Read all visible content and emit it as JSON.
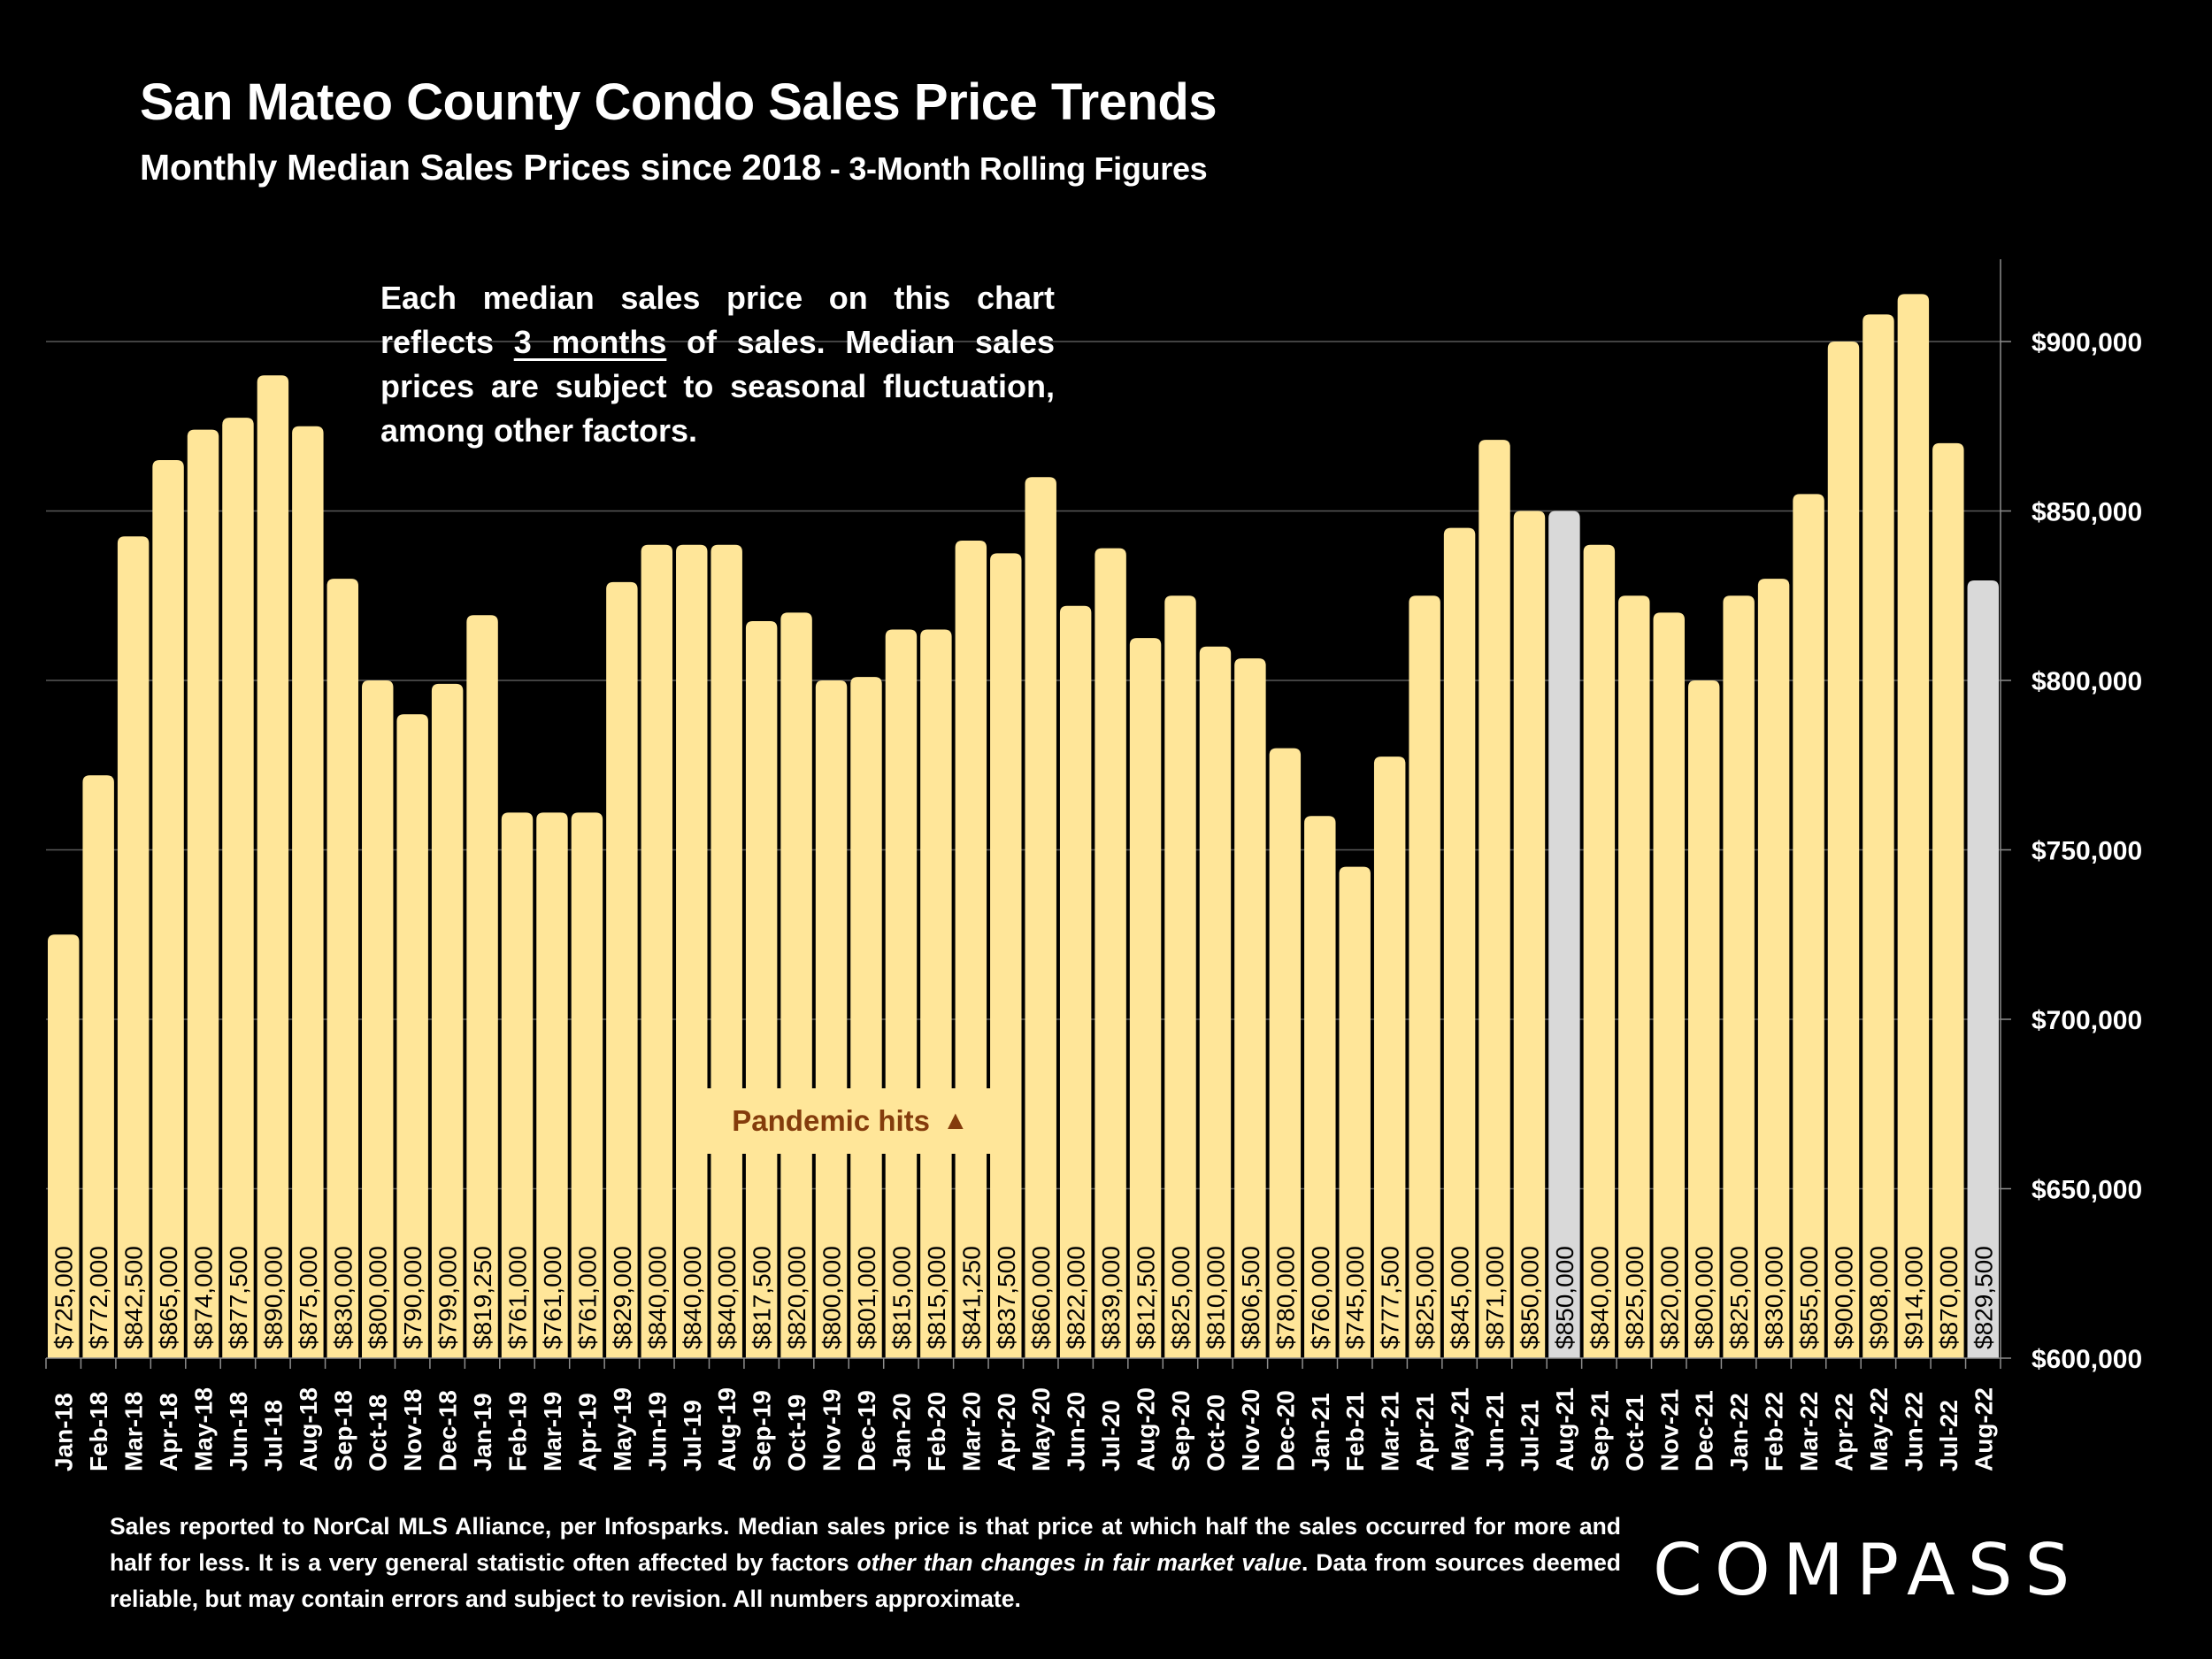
{
  "header": {
    "title": "San Mateo County Condo Sales Price Trends",
    "subtitle_main": "Monthly Median Sales Prices since 2018",
    "subtitle_suffix": " - 3-Month Rolling Figures"
  },
  "note": {
    "part1": "Each median sales price on this chart reflects ",
    "underlined": "3 months",
    "part2": " of sales. Median sales prices are subject to seasonal fluctuation, among other factors."
  },
  "annotation": {
    "label": "Pandemic hits",
    "icon": "up-triangle-icon",
    "glyph": "▲"
  },
  "footer": {
    "part1": "Sales reported to NorCal MLS Alliance, per Infosparks. Median sales price is that price at which half the sales occurred for more and half for less. It is a very general statistic often affected by factors ",
    "italic": "other than changes in fair market value",
    "part2": ". Data from sources deemed reliable, but may contain errors and subject to revision. All numbers approximate."
  },
  "logo": {
    "text": "COMPASS"
  },
  "colors": {
    "bar": "#FFE699",
    "bar_highlight": "#D9D9D9",
    "annotation_text": "#843C0C",
    "gridline": "#595959",
    "background": "#000000"
  },
  "chart_data": {
    "type": "bar",
    "title": "San Mateo County Condo Sales Price Trends",
    "subtitle": "Monthly Median Sales Prices since 2018 - 3-Month Rolling Figures",
    "xlabel": "",
    "ylabel": "",
    "ylim": [
      600000,
      925000
    ],
    "yticks": [
      600000,
      650000,
      700000,
      750000,
      800000,
      850000,
      900000
    ],
    "ytick_labels": [
      "$600,000",
      "$650,000",
      "$700,000",
      "$750,000",
      "$800,000",
      "$850,000",
      "$900,000"
    ],
    "y_axis_position": "right",
    "grid": true,
    "legend": "none",
    "categories": [
      "Jan-18",
      "Feb-18",
      "Mar-18",
      "Apr-18",
      "May-18",
      "Jun-18",
      "Jul-18",
      "Aug-18",
      "Sep-18",
      "Oct-18",
      "Nov-18",
      "Dec-18",
      "Jan-19",
      "Feb-19",
      "Mar-19",
      "Apr-19",
      "May-19",
      "Jun-19",
      "Jul-19",
      "Aug-19",
      "Sep-19",
      "Oct-19",
      "Nov-19",
      "Dec-19",
      "Jan-20",
      "Feb-20",
      "Mar-20",
      "Apr-20",
      "May-20",
      "Jun-20",
      "Jul-20",
      "Aug-20",
      "Sep-20",
      "Oct-20",
      "Nov-20",
      "Dec-20",
      "Jan-21",
      "Feb-21",
      "Mar-21",
      "Apr-21",
      "May-21",
      "Jun-21",
      "Jul-21",
      "Aug-21",
      "Sep-21",
      "Oct-21",
      "Nov-21",
      "Dec-21",
      "Jan-22",
      "Feb-22",
      "Mar-22",
      "Apr-22",
      "May-22",
      "Jun-22",
      "Jul-22",
      "Aug-22"
    ],
    "values": [
      725000,
      772000,
      842500,
      865000,
      874000,
      877500,
      890000,
      875000,
      830000,
      800000,
      790000,
      799000,
      819250,
      761000,
      761000,
      761000,
      829000,
      840000,
      840000,
      840000,
      817500,
      820000,
      800000,
      801000,
      815000,
      815000,
      841250,
      837500,
      860000,
      822000,
      839000,
      812500,
      825000,
      810000,
      806500,
      780000,
      760000,
      745000,
      777500,
      825000,
      845000,
      871000,
      850000,
      850000,
      840000,
      825000,
      820000,
      800000,
      825000,
      830000,
      855000,
      900000,
      908000,
      914000,
      870000,
      829500
    ],
    "data_labels": [
      "$725,000",
      "$772,000",
      "$842,500",
      "$865,000",
      "$874,000",
      "$877,500",
      "$890,000",
      "$875,000",
      "$830,000",
      "$800,000",
      "$790,000",
      "$799,000",
      "$819,250",
      "$761,000",
      "$761,000",
      "$761,000",
      "$829,000",
      "$840,000",
      "$840,000",
      "$840,000",
      "$817,500",
      "$820,000",
      "$800,000",
      "$801,000",
      "$815,000",
      "$815,000",
      "$841,250",
      "$837,500",
      "$860,000",
      "$822,000",
      "$839,000",
      "$812,500",
      "$825,000",
      "$810,000",
      "$806,500",
      "$780,000",
      "$760,000",
      "$745,000",
      "$777,500",
      "$825,000",
      "$845,000",
      "$871,000",
      "$850,000",
      "$850,000",
      "$840,000",
      "$825,000",
      "$820,000",
      "$800,000",
      "$825,000",
      "$830,000",
      "$855,000",
      "$900,000",
      "$908,000",
      "$914,000",
      "$870,000",
      "$829,500"
    ],
    "highlighted_categories": [
      "Aug-21",
      "Aug-22"
    ],
    "annotations": [
      {
        "text": "Pandemic hits ▲",
        "near": "Mar-20"
      }
    ]
  }
}
